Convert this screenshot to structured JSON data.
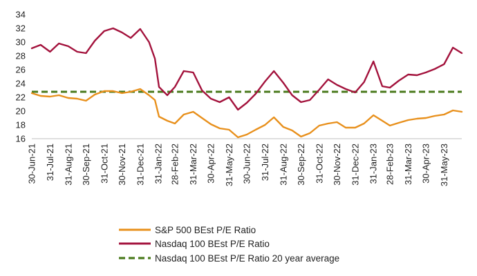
{
  "chart_data": {
    "type": "line",
    "title": "",
    "xlabel": "",
    "ylabel": "",
    "ylim": [
      16,
      34
    ],
    "yticks": [
      16,
      18,
      20,
      22,
      24,
      26,
      28,
      30,
      32,
      34
    ],
    "x_tick_labels": [
      "30-Jun-21",
      "31-Jul-21",
      "31-Aug-21",
      "30-Sep-21",
      "31-Oct-21",
      "30-Nov-21",
      "31-Dec-21",
      "31-Jan-22",
      "28-Feb-22",
      "31-Mar-22",
      "30-Apr-22",
      "31-May-22",
      "30-Jun-22",
      "31-Jul-22",
      "31-Aug-22",
      "30-Sep-22",
      "31-Oct-22",
      "30-Nov-22",
      "31-Dec-22",
      "31-Jan-23",
      "28-Feb-23",
      "31-Mar-23",
      "30-Apr-23",
      "31-May-23"
    ],
    "x_range": [
      "30-Jun-21",
      "30-Jun-23"
    ],
    "grid": false,
    "legend_position": "bottom-center",
    "series": [
      {
        "name": "S&P 500 BEst P/E Ratio",
        "color": "#e8901c",
        "style": "solid",
        "x": [
          "30-Jun-21",
          "15-Jul-21",
          "31-Jul-21",
          "15-Aug-21",
          "31-Aug-21",
          "15-Sep-21",
          "30-Sep-21",
          "15-Oct-21",
          "31-Oct-21",
          "15-Nov-21",
          "30-Nov-21",
          "15-Dec-21",
          "31-Dec-21",
          "15-Jan-22",
          "25-Jan-22",
          "01-Feb-22",
          "15-Feb-22",
          "28-Feb-22",
          "15-Mar-22",
          "31-Mar-22",
          "15-Apr-22",
          "30-Apr-22",
          "15-May-22",
          "31-May-22",
          "15-Jun-22",
          "30-Jun-22",
          "15-Jul-22",
          "31-Jul-22",
          "15-Aug-22",
          "31-Aug-22",
          "15-Sep-22",
          "30-Sep-22",
          "15-Oct-22",
          "31-Oct-22",
          "15-Nov-22",
          "30-Nov-22",
          "15-Dec-22",
          "31-Dec-22",
          "15-Jan-23",
          "31-Jan-23",
          "15-Feb-23",
          "28-Feb-23",
          "15-Mar-23",
          "31-Mar-23",
          "15-Apr-23",
          "30-Apr-23",
          "15-May-23",
          "31-May-23",
          "15-Jun-23",
          "30-Jun-23"
        ],
        "values": [
          22.6,
          22.2,
          22.1,
          22.3,
          21.9,
          21.8,
          21.5,
          22.4,
          22.9,
          22.9,
          22.6,
          22.8,
          23.2,
          22.3,
          21.6,
          19.2,
          18.6,
          18.2,
          19.5,
          19.9,
          19.0,
          18.1,
          17.5,
          17.3,
          16.2,
          16.6,
          17.3,
          18.0,
          19.1,
          17.7,
          17.2,
          16.3,
          16.8,
          17.9,
          18.2,
          18.4,
          17.6,
          17.6,
          18.2,
          19.4,
          18.6,
          17.9,
          18.3,
          18.7,
          18.9,
          19.0,
          19.3,
          19.5,
          20.1,
          19.9
        ]
      },
      {
        "name": "Nasdaq 100 BEst P/E Ratio",
        "color": "#a3123c",
        "style": "solid",
        "x": [
          "30-Jun-21",
          "15-Jul-21",
          "31-Jul-21",
          "15-Aug-21",
          "31-Aug-21",
          "15-Sep-21",
          "30-Sep-21",
          "15-Oct-21",
          "31-Oct-21",
          "15-Nov-21",
          "30-Nov-21",
          "15-Dec-21",
          "31-Dec-21",
          "15-Jan-22",
          "25-Jan-22",
          "01-Feb-22",
          "15-Feb-22",
          "28-Feb-22",
          "15-Mar-22",
          "31-Mar-22",
          "15-Apr-22",
          "30-Apr-22",
          "15-May-22",
          "31-May-22",
          "15-Jun-22",
          "30-Jun-22",
          "15-Jul-22",
          "31-Jul-22",
          "15-Aug-22",
          "31-Aug-22",
          "15-Sep-22",
          "30-Sep-22",
          "15-Oct-22",
          "31-Oct-22",
          "15-Nov-22",
          "30-Nov-22",
          "15-Dec-22",
          "31-Dec-22",
          "15-Jan-23",
          "31-Jan-23",
          "15-Feb-23",
          "28-Feb-23",
          "15-Mar-23",
          "31-Mar-23",
          "15-Apr-23",
          "30-Apr-23",
          "15-May-23",
          "31-May-23",
          "15-Jun-23",
          "30-Jun-23"
        ],
        "values": [
          29.1,
          29.6,
          28.6,
          29.8,
          29.4,
          28.6,
          28.4,
          30.2,
          31.6,
          32.0,
          31.4,
          30.6,
          31.9,
          30.0,
          27.6,
          23.5,
          22.3,
          23.5,
          25.8,
          25.6,
          23.0,
          21.8,
          21.3,
          22.0,
          20.2,
          21.2,
          22.5,
          24.3,
          25.8,
          24.1,
          22.3,
          21.3,
          21.6,
          23.1,
          24.6,
          23.8,
          23.2,
          22.7,
          24.2,
          27.2,
          23.6,
          23.4,
          24.4,
          25.3,
          25.2,
          25.6,
          26.1,
          26.8,
          29.2,
          28.4
        ]
      },
      {
        "name": "Nasdaq 100 BEst P/E Ratio 20 year average",
        "color": "#4a7a1c",
        "style": "dashed",
        "x": [
          "30-Jun-21",
          "30-Jun-23"
        ],
        "values": [
          22.8,
          22.8
        ]
      }
    ]
  }
}
